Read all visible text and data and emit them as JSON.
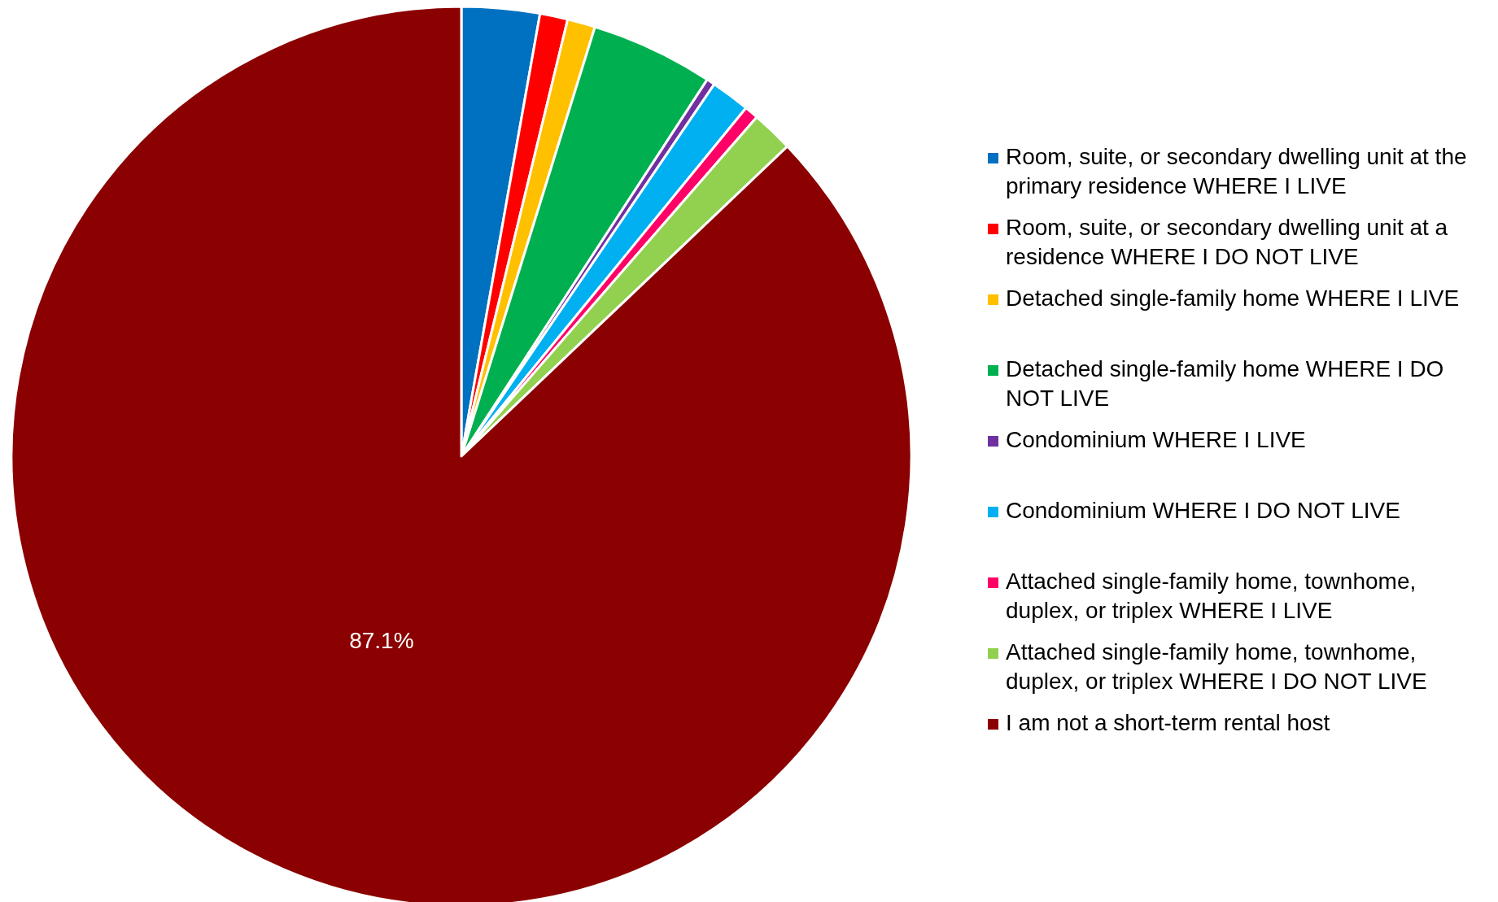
{
  "chart_data": {
    "type": "pie",
    "categories": [
      "Room, suite, or secondary dwelling unit at the primary residence WHERE I LIVE",
      "Room, suite, or secondary dwelling unit at a residence WHERE I DO NOT LIVE",
      "Detached single-family home WHERE I LIVE",
      "Detached single-family home WHERE I DO NOT LIVE",
      "Condominium WHERE I LIVE",
      "Condominium WHERE I DO NOT LIVE",
      "Attached single-family home, townhome, duplex, or triplex WHERE I LIVE",
      "Attached single-family home, townhome, duplex, or triplex WHERE I DO NOT LIVE",
      "I am not a short-term rental host"
    ],
    "values": [
      2.8,
      1.0,
      1.0,
      4.4,
      0.3,
      1.4,
      0.5,
      1.5,
      87.1
    ],
    "colors": [
      "#0070c0",
      "#ff0000",
      "#ffc000",
      "#00b050",
      "#7030a0",
      "#00b0f0",
      "#ff0066",
      "#92d050",
      "#8b0000"
    ],
    "value_labels": [
      null,
      null,
      null,
      null,
      null,
      null,
      null,
      null,
      "87.1%"
    ],
    "legend": "right"
  }
}
